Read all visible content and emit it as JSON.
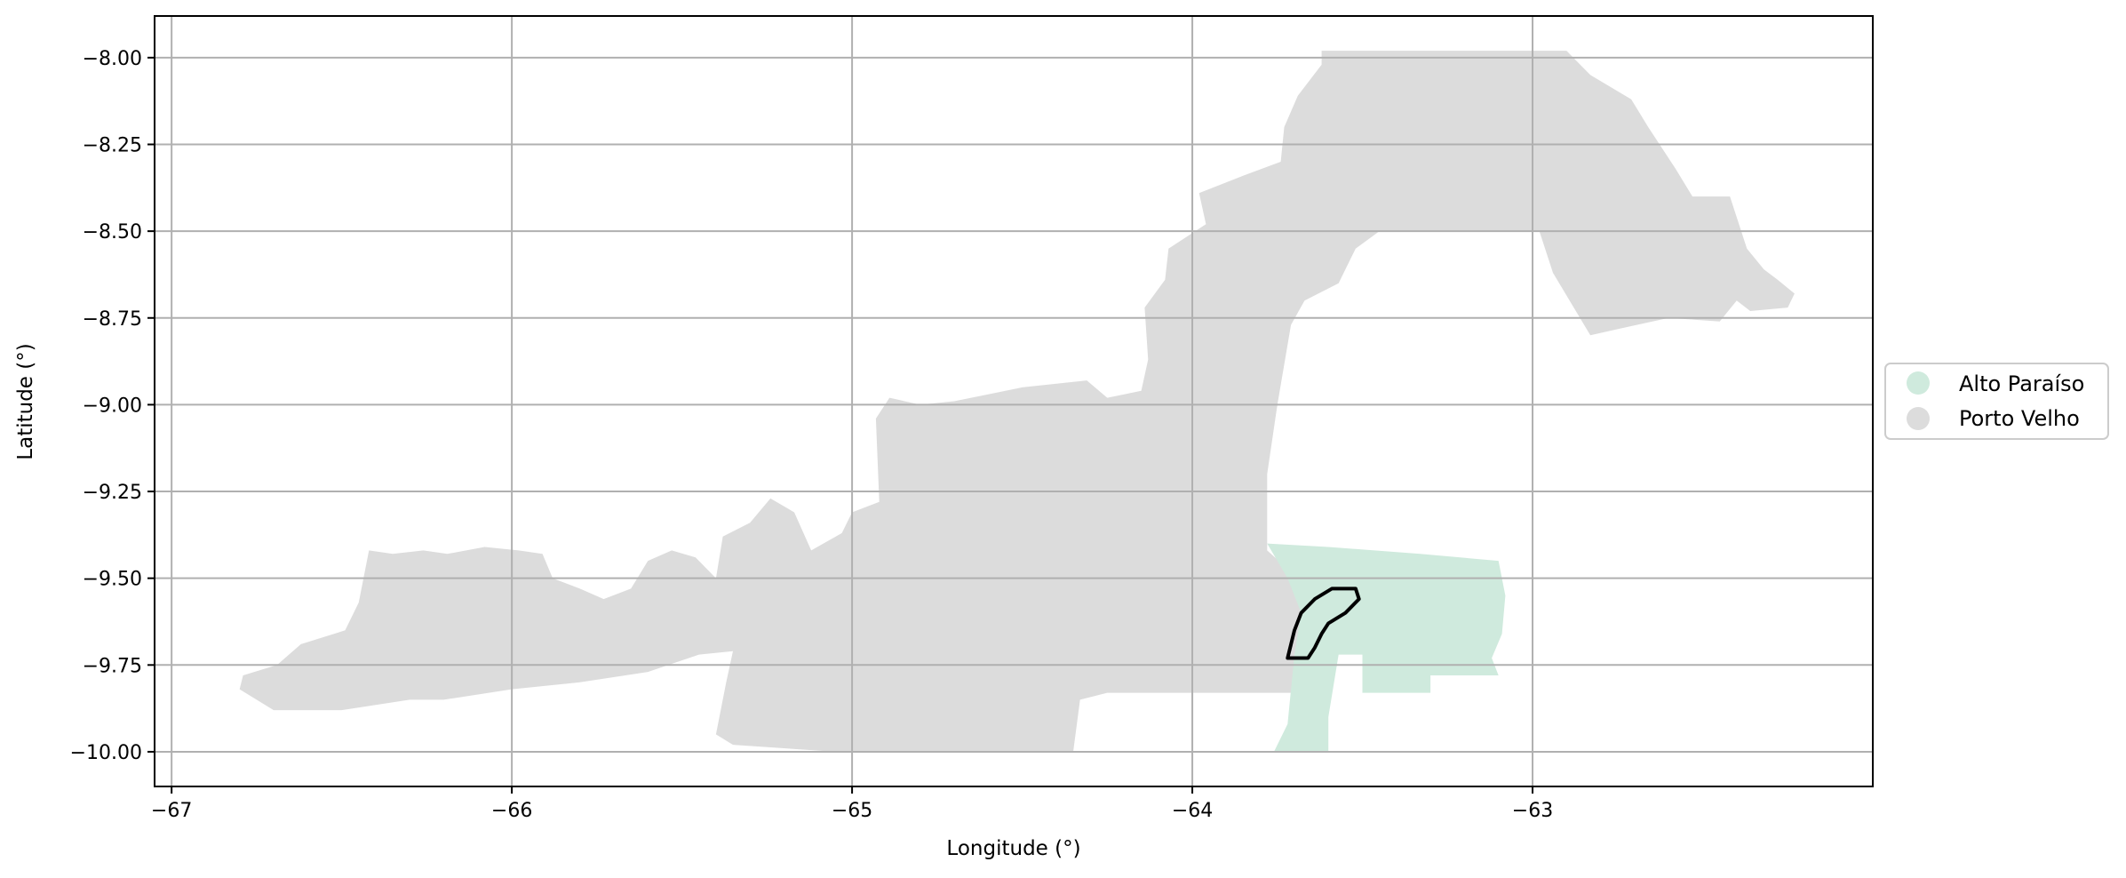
{
  "map": {
    "xlabel": "Longitude (°)",
    "ylabel": "Latitude (°)",
    "xlim": [
      -67.05,
      -62.0
    ],
    "ylim": [
      -10.1,
      -7.88
    ],
    "x_ticks": [
      {
        "value": -67,
        "label": "−67"
      },
      {
        "value": -66,
        "label": "−66"
      },
      {
        "value": -65,
        "label": "−65"
      },
      {
        "value": -64,
        "label": "−64"
      },
      {
        "value": -63,
        "label": "−63"
      }
    ],
    "y_ticks": [
      {
        "value": -8.0,
        "label": "−8.00"
      },
      {
        "value": -8.25,
        "label": "−8.25"
      },
      {
        "value": -8.5,
        "label": "−8.50"
      },
      {
        "value": -8.75,
        "label": "−8.75"
      },
      {
        "value": -9.0,
        "label": "−9.00"
      },
      {
        "value": -9.25,
        "label": "−9.25"
      },
      {
        "value": -9.5,
        "label": "−9.50"
      },
      {
        "value": -9.75,
        "label": "−9.75"
      },
      {
        "value": -10.0,
        "label": "−10.00"
      }
    ],
    "grid": true,
    "legend_position": "center-right, outside plot",
    "legend": [
      {
        "label": "Alto Paraíso",
        "color": "#cfeadd"
      },
      {
        "label": "Porto Velho",
        "color": "#dcdcdc"
      }
    ],
    "regions": [
      {
        "name": "Porto Velho",
        "color": "#dcdcdc",
        "polygon": [
          [
            -66.8,
            -9.82
          ],
          [
            -66.79,
            -9.78
          ],
          [
            -66.69,
            -9.75
          ],
          [
            -66.62,
            -9.69
          ],
          [
            -66.49,
            -9.65
          ],
          [
            -66.45,
            -9.57
          ],
          [
            -66.42,
            -9.42
          ],
          [
            -66.35,
            -9.43
          ],
          [
            -66.26,
            -9.42
          ],
          [
            -66.19,
            -9.43
          ],
          [
            -66.08,
            -9.41
          ],
          [
            -65.98,
            -9.42
          ],
          [
            -65.91,
            -9.43
          ],
          [
            -65.88,
            -9.5
          ],
          [
            -65.8,
            -9.53
          ],
          [
            -65.73,
            -9.56
          ],
          [
            -65.65,
            -9.53
          ],
          [
            -65.6,
            -9.45
          ],
          [
            -65.53,
            -9.42
          ],
          [
            -65.46,
            -9.44
          ],
          [
            -65.4,
            -9.5
          ],
          [
            -65.38,
            -9.38
          ],
          [
            -65.3,
            -9.34
          ],
          [
            -65.24,
            -9.27
          ],
          [
            -65.17,
            -9.31
          ],
          [
            -65.12,
            -9.42
          ],
          [
            -65.03,
            -9.37
          ],
          [
            -65.0,
            -9.31
          ],
          [
            -64.92,
            -9.28
          ],
          [
            -64.93,
            -9.04
          ],
          [
            -64.89,
            -8.98
          ],
          [
            -64.8,
            -9.0
          ],
          [
            -64.7,
            -8.99
          ],
          [
            -64.6,
            -8.97
          ],
          [
            -64.5,
            -8.95
          ],
          [
            -64.31,
            -8.93
          ],
          [
            -64.25,
            -8.98
          ],
          [
            -64.15,
            -8.96
          ],
          [
            -64.13,
            -8.87
          ],
          [
            -64.14,
            -8.72
          ],
          [
            -64.08,
            -8.64
          ],
          [
            -64.07,
            -8.55
          ],
          [
            -63.96,
            -8.48
          ],
          [
            -63.98,
            -8.39
          ],
          [
            -63.85,
            -8.34
          ],
          [
            -63.74,
            -8.3
          ],
          [
            -63.73,
            -8.2
          ],
          [
            -63.69,
            -8.11
          ],
          [
            -63.62,
            -8.02
          ],
          [
            -63.62,
            -7.98
          ],
          [
            -63.15,
            -7.98
          ],
          [
            -62.9,
            -7.98
          ],
          [
            -62.83,
            -8.05
          ],
          [
            -62.71,
            -8.12
          ],
          [
            -62.66,
            -8.2
          ],
          [
            -62.58,
            -8.32
          ],
          [
            -62.53,
            -8.4
          ],
          [
            -62.42,
            -8.4
          ],
          [
            -62.37,
            -8.55
          ],
          [
            -62.32,
            -8.61
          ],
          [
            -62.28,
            -8.64
          ],
          [
            -62.23,
            -8.68
          ],
          [
            -62.25,
            -8.72
          ],
          [
            -62.36,
            -8.73
          ],
          [
            -62.4,
            -8.7
          ],
          [
            -62.45,
            -8.76
          ],
          [
            -62.6,
            -8.75
          ],
          [
            -62.74,
            -8.78
          ],
          [
            -62.83,
            -8.8
          ],
          [
            -62.94,
            -8.62
          ],
          [
            -62.98,
            -8.5
          ],
          [
            -63.25,
            -8.5
          ],
          [
            -63.45,
            -8.5
          ],
          [
            -63.52,
            -8.55
          ],
          [
            -63.57,
            -8.65
          ],
          [
            -63.67,
            -8.7
          ],
          [
            -63.71,
            -8.77
          ],
          [
            -63.75,
            -9.0
          ],
          [
            -63.78,
            -9.2
          ],
          [
            -63.78,
            -9.42
          ],
          [
            -63.7,
            -9.49
          ],
          [
            -63.65,
            -9.64
          ],
          [
            -63.7,
            -9.72
          ],
          [
            -63.7,
            -9.83
          ],
          [
            -64.0,
            -9.83
          ],
          [
            -64.25,
            -9.83
          ],
          [
            -64.33,
            -9.85
          ],
          [
            -64.35,
            -10.0
          ],
          [
            -65.05,
            -10.0
          ],
          [
            -65.35,
            -9.98
          ],
          [
            -65.4,
            -9.95
          ],
          [
            -65.37,
            -9.8
          ],
          [
            -65.35,
            -9.71
          ],
          [
            -65.45,
            -9.72
          ],
          [
            -65.6,
            -9.77
          ],
          [
            -65.8,
            -9.8
          ],
          [
            -66.0,
            -9.82
          ],
          [
            -66.2,
            -9.85
          ],
          [
            -66.3,
            -9.85
          ],
          [
            -66.5,
            -9.88
          ],
          [
            -66.6,
            -9.88
          ],
          [
            -66.7,
            -9.88
          ],
          [
            -66.8,
            -9.82
          ]
        ]
      },
      {
        "name": "Alto Paraíso",
        "color": "#cfeadd",
        "polygon": [
          [
            -63.78,
            -9.4
          ],
          [
            -63.6,
            -9.41
          ],
          [
            -63.33,
            -9.43
          ],
          [
            -63.1,
            -9.45
          ],
          [
            -63.08,
            -9.55
          ],
          [
            -63.09,
            -9.66
          ],
          [
            -63.12,
            -9.73
          ],
          [
            -63.1,
            -9.78
          ],
          [
            -63.3,
            -9.78
          ],
          [
            -63.3,
            -9.83
          ],
          [
            -63.5,
            -9.83
          ],
          [
            -63.5,
            -9.72
          ],
          [
            -63.57,
            -9.72
          ],
          [
            -63.6,
            -9.9
          ],
          [
            -63.6,
            -10.0
          ],
          [
            -63.76,
            -10.0
          ],
          [
            -63.72,
            -9.92
          ],
          [
            -63.7,
            -9.72
          ],
          [
            -63.68,
            -9.6
          ],
          [
            -63.72,
            -9.5
          ],
          [
            -63.78,
            -9.4
          ]
        ]
      }
    ],
    "outline": {
      "polygon": [
        [
          -63.59,
          -9.53
        ],
        [
          -63.52,
          -9.53
        ],
        [
          -63.51,
          -9.56
        ],
        [
          -63.55,
          -9.6
        ],
        [
          -63.6,
          -9.63
        ],
        [
          -63.62,
          -9.66
        ],
        [
          -63.64,
          -9.7
        ],
        [
          -63.66,
          -9.73
        ],
        [
          -63.72,
          -9.73
        ],
        [
          -63.7,
          -9.65
        ],
        [
          -63.68,
          -9.6
        ],
        [
          -63.64,
          -9.56
        ],
        [
          -63.59,
          -9.53
        ]
      ]
    }
  }
}
